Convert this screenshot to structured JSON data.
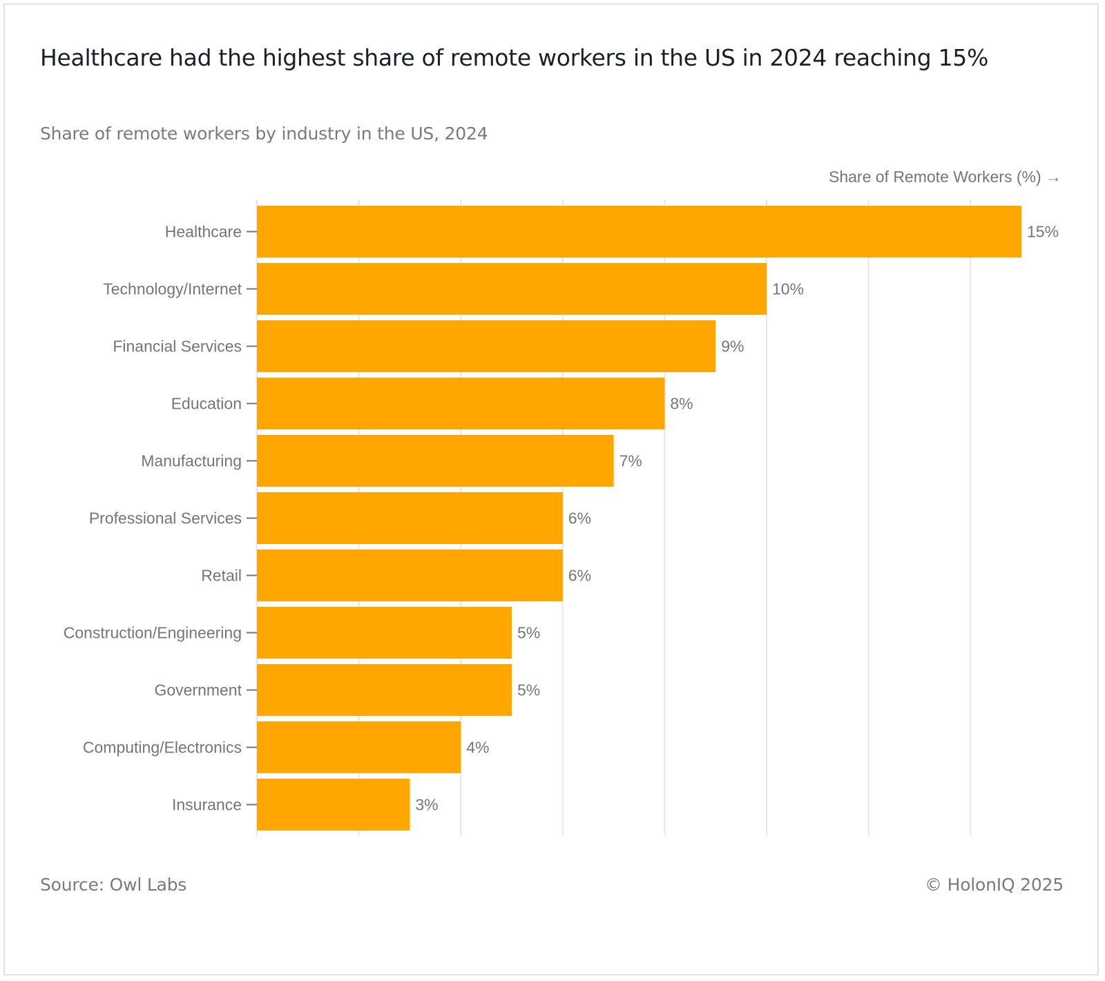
{
  "header": {
    "title": "Healthcare had the highest share of remote workers in the US in 2024 reaching 15%",
    "subtitle": "Share of remote workers by industry in the US, 2024"
  },
  "footer": {
    "source": "Source: Owl Labs",
    "copyright": "© HolonIQ 2025"
  },
  "colors": {
    "bar": "#FFA600",
    "grid": "#e6e6e6",
    "label": "#757575",
    "title": "#1a1f28"
  },
  "chart_data": {
    "type": "bar",
    "orientation": "horizontal",
    "title": "Healthcare had the highest share of remote workers in the US in 2024 reaching 15%",
    "subtitle": "Share of remote workers by industry in the US, 2024",
    "xlabel": "Share of Remote Workers (%) →",
    "ylabel": "",
    "xlim": [
      0,
      15.5
    ],
    "grid_x": [
      0,
      2,
      4,
      6,
      8,
      10,
      12,
      14
    ],
    "grid": true,
    "x_tick_labels_shown": false,
    "categories": [
      "Healthcare",
      "Technology/Internet",
      "Financial Services",
      "Education",
      "Manufacturing",
      "Professional Services",
      "Retail",
      "Construction/Engineering",
      "Government",
      "Computing/Electronics",
      "Insurance"
    ],
    "values": [
      15,
      10,
      9,
      8,
      7,
      6,
      6,
      5,
      5,
      4,
      3
    ],
    "value_labels": [
      "15%",
      "10%",
      "9%",
      "8%",
      "7%",
      "6%",
      "6%",
      "5%",
      "5%",
      "4%",
      "3%"
    ],
    "source": "Source: Owl Labs"
  }
}
